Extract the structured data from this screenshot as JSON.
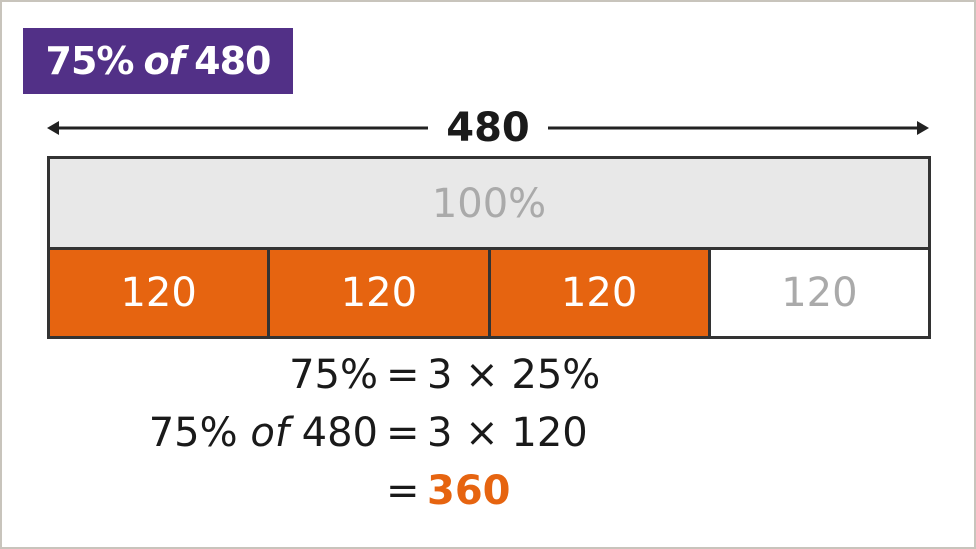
{
  "title": {
    "pre": "75%",
    "of": "of",
    "post": "480",
    "bg": "#523087"
  },
  "arrow": {
    "label": "480"
  },
  "whole": {
    "label": "100%"
  },
  "parts": [
    {
      "label": "120",
      "shaded": true
    },
    {
      "label": "120",
      "shaded": true
    },
    {
      "label": "120",
      "shaded": true
    },
    {
      "label": "120",
      "shaded": false
    }
  ],
  "colors": {
    "shaded": "#e66410",
    "whole": "#e8e8e8"
  },
  "equations": {
    "line1": {
      "left": "75%",
      "eq": "=",
      "right": "3 × 25%"
    },
    "line2": {
      "left_pre": "75%",
      "left_of": "of",
      "left_post": "480",
      "eq": "=",
      "right": "3 × 120"
    },
    "line3": {
      "eq": "=",
      "right": "360"
    }
  }
}
